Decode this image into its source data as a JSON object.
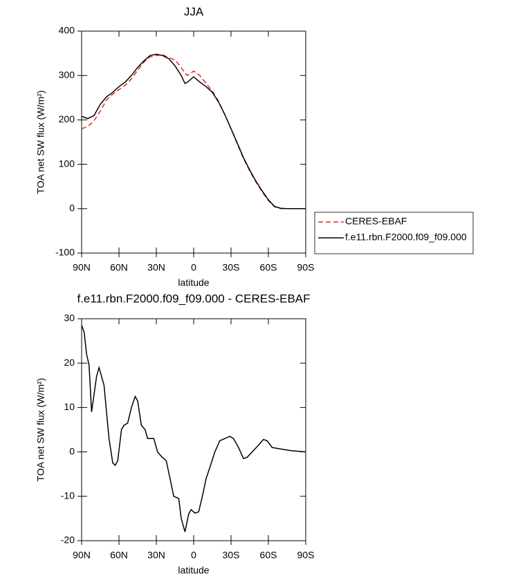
{
  "chart_data": [
    {
      "type": "line",
      "title": "JJA",
      "xlabel": "latitude",
      "ylabel": "TOA net SW flux (W/m²)",
      "x": [
        90,
        85,
        80,
        75,
        70,
        65,
        60,
        55,
        50,
        45,
        40,
        35,
        30,
        25,
        20,
        15,
        10,
        7,
        5,
        0,
        -5,
        -10,
        -15,
        -20,
        -25,
        -30,
        -35,
        -40,
        -45,
        -50,
        -55,
        -60,
        -65,
        -70,
        -75,
        -80,
        -85,
        -90
      ],
      "series": [
        {
          "name": "CERES-EBAF",
          "color": "#e8251f",
          "linestyle": "dashed",
          "values": [
            180,
            185,
            198,
            220,
            245,
            258,
            268,
            278,
            292,
            312,
            330,
            342,
            345,
            347,
            340,
            335,
            318,
            305,
            300,
            310,
            300,
            282,
            265,
            242,
            212,
            180,
            146,
            113,
            85,
            60,
            38,
            18,
            4,
            0,
            0,
            0,
            0,
            0
          ]
        },
        {
          "name": "f.e11.rbn.F2000.f09_f09.000",
          "color": "#000000",
          "linestyle": "solid",
          "values": [
            208,
            203,
            210,
            235,
            252,
            262,
            275,
            285,
            300,
            318,
            333,
            345,
            348,
            345,
            338,
            322,
            300,
            282,
            285,
            297,
            285,
            275,
            262,
            240,
            212,
            180,
            148,
            115,
            87,
            62,
            40,
            20,
            5,
            1,
            0,
            0,
            0,
            0
          ]
        }
      ],
      "xlim": [
        90,
        -90
      ],
      "xticks": [
        {
          "value": 90,
          "label": "90N"
        },
        {
          "value": 60,
          "label": "60N"
        },
        {
          "value": 30,
          "label": "30N"
        },
        0,
        {
          "value": -30,
          "label": "30S"
        },
        {
          "value": -60,
          "label": "60S"
        },
        {
          "value": -90,
          "label": "90S"
        }
      ],
      "ylim": [
        -100,
        400
      ],
      "yticks": [
        -100,
        0,
        100,
        200,
        300,
        400
      ],
      "legend": "outside right"
    },
    {
      "type": "line",
      "title": "f.e11.rbn.F2000.f09_f09.000 - CERES-EBAF",
      "xlabel": "latitude",
      "ylabel": "TOA net SW flux (W/m²)",
      "x": [
        90,
        88,
        86,
        84,
        82,
        78,
        76,
        72,
        71,
        68,
        65,
        63,
        61,
        58,
        56,
        53,
        50,
        47,
        45,
        42,
        39,
        37,
        32,
        29,
        26,
        22,
        19,
        16,
        12,
        10,
        7,
        4,
        2,
        -1,
        -4,
        -7,
        -10,
        -13,
        -17,
        -21,
        -25,
        -29,
        -32,
        -36,
        -40,
        -43,
        -47,
        -52,
        -56,
        -59,
        -63,
        -67,
        -78,
        -90
      ],
      "values": [
        28.5,
        27,
        22,
        19.5,
        9,
        17,
        19,
        15,
        12,
        3,
        -2.5,
        -3,
        -2,
        5,
        6,
        6.5,
        10,
        12.5,
        11.5,
        6,
        5,
        3,
        3,
        0,
        -1,
        -2,
        -6,
        -10,
        -10.5,
        -15,
        -18,
        -14,
        -13,
        -13.8,
        -13.5,
        -10,
        -6,
        -3.5,
        0,
        2.5,
        3,
        3.5,
        3,
        1,
        -1.5,
        -1.2,
        0,
        1.5,
        2.8,
        2.5,
        1,
        0.8,
        0.3,
        0
      ],
      "color": "#000000",
      "xlim": [
        90,
        -90
      ],
      "xticks": [
        {
          "value": 90,
          "label": "90N"
        },
        {
          "value": 60,
          "label": "60N"
        },
        {
          "value": 30,
          "label": "30N"
        },
        0,
        {
          "value": -30,
          "label": "30S"
        },
        {
          "value": -60,
          "label": "60S"
        },
        {
          "value": -90,
          "label": "90S"
        }
      ],
      "ylim": [
        -20,
        30
      ],
      "yticks": [
        -20,
        -10,
        0,
        10,
        20,
        30
      ]
    }
  ]
}
